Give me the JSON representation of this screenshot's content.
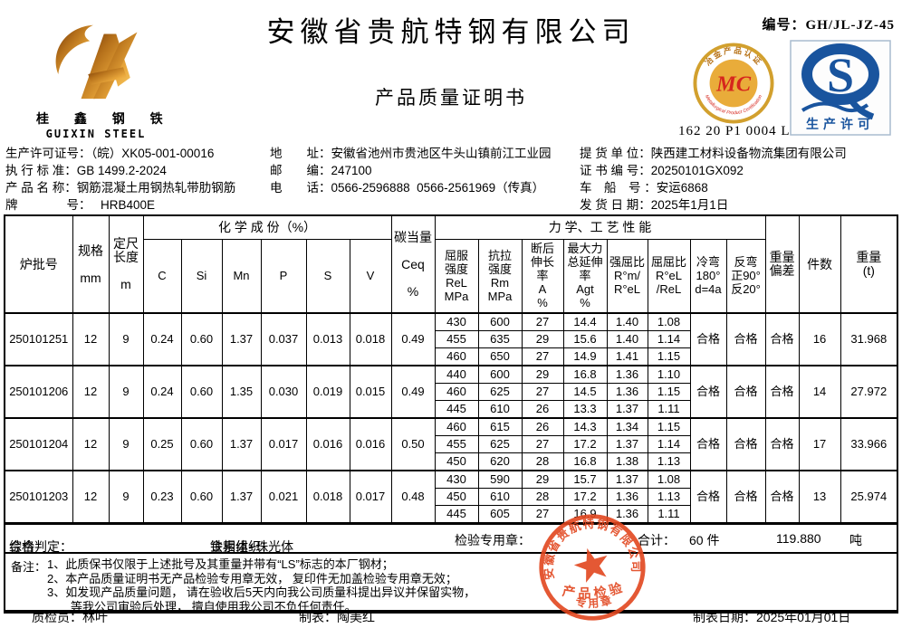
{
  "page": {
    "company": "安徽省贵航特钢有限公司",
    "doc_title": "产品质量证明书",
    "doc_no_label": "编号：",
    "doc_no": "GH/JL-JZ-45"
  },
  "logo": {
    "cn": "桂 鑫 钢 铁",
    "en": "GUIXIN STEEL"
  },
  "badges": {
    "mc": {
      "letters": "MC",
      "arc_top": "冶金产品认证",
      "arc_bottom": "Metallurgical Product Certification",
      "code": "162 20 P1 0004 L"
    },
    "qs": {
      "letter": "S",
      "label": "生产许可"
    }
  },
  "info": {
    "left": [
      {
        "label": "生产许可证号：",
        "value": "（皖）XK05-001-00016"
      },
      {
        "label": "执 行 标 准：",
        "value": "GB 1499.2-2024"
      },
      {
        "label": "产 品 名 称：",
        "value": "钢筋混凝土用钢热轧带肋钢筋"
      },
      {
        "label": "牌　　　　号：",
        "value": "　 HRB400E"
      }
    ],
    "middle": [
      {
        "label": "地　　址：",
        "value": "安徽省池州市贵池区牛头山镇前江工业园"
      },
      {
        "label": "邮　　编：",
        "value": "247100"
      },
      {
        "label": "电　　话：",
        "value": "0566-2596888  0566-2561969（传真）"
      }
    ],
    "right": [
      {
        "label": "提 货 单 位：",
        "value": "陕西建工材料设备物流集团有限公司"
      },
      {
        "label": "证 书 编 号：",
        "value": "20250101GX092"
      },
      {
        "label": "车　船　号 ：",
        "value": "安运6868"
      },
      {
        "label": "发 货 日 期：",
        "value": "2025年1月1日"
      }
    ]
  },
  "table": {
    "group_chem": "化 学 成 份（%）",
    "group_mech": "力 学、工 艺 性 能",
    "cols": {
      "batch": "炉批号",
      "spec": "规格\n\nmm",
      "length": "定尺\n长度\n\nm",
      "c": "C",
      "si": "Si",
      "mn": "Mn",
      "p": "P",
      "s": "S",
      "v": "V",
      "ceq": "碳当量\n\nCeq\n\n%",
      "rel": "屈服\n强度\nReL\nMPa",
      "rm": "抗拉\n强度\nRm\nMPa",
      "a": "断后\n伸长\n率\nA\n%",
      "agt": "最大力\n总延伸\n率\nAgt\n%",
      "rm_rel": "强屈比\nR°m/\nR°eL",
      "rel_rel": "屈屈比\nR°eL\n/ReL",
      "cold": "冷弯\n180°\nd=4a",
      "rebend": "反弯\n正90°\n反20°",
      "wdev": "重量\n偏差",
      "pieces": "件数",
      "weight": "重量\n(t)"
    },
    "batches": [
      {
        "batch_no": "250101251",
        "spec": "12",
        "length": "9",
        "chem": [
          "0.24",
          "0.60",
          "1.37",
          "0.037",
          "0.013",
          "0.018",
          "0.49"
        ],
        "mech": [
          [
            "430",
            "600",
            "27",
            "14.4",
            "1.40",
            "1.08"
          ],
          [
            "455",
            "635",
            "29",
            "15.6",
            "1.40",
            "1.14"
          ],
          [
            "460",
            "650",
            "27",
            "14.9",
            "1.41",
            "1.15"
          ]
        ],
        "cold_bend": "合格",
        "reverse_bend": "合格",
        "weight_dev": "合格",
        "pieces": "16",
        "weight": "31.968"
      },
      {
        "batch_no": "250101206",
        "spec": "12",
        "length": "9",
        "chem": [
          "0.24",
          "0.60",
          "1.35",
          "0.030",
          "0.019",
          "0.015",
          "0.49"
        ],
        "mech": [
          [
            "440",
            "600",
            "29",
            "16.8",
            "1.36",
            "1.10"
          ],
          [
            "460",
            "625",
            "27",
            "14.5",
            "1.36",
            "1.15"
          ],
          [
            "445",
            "610",
            "26",
            "13.3",
            "1.37",
            "1.11"
          ]
        ],
        "cold_bend": "合格",
        "reverse_bend": "合格",
        "weight_dev": "合格",
        "pieces": "14",
        "weight": "27.972"
      },
      {
        "batch_no": "250101204",
        "spec": "12",
        "length": "9",
        "chem": [
          "0.25",
          "0.60",
          "1.37",
          "0.017",
          "0.016",
          "0.016",
          "0.50"
        ],
        "mech": [
          [
            "460",
            "615",
            "26",
            "14.3",
            "1.34",
            "1.15"
          ],
          [
            "455",
            "625",
            "27",
            "17.2",
            "1.37",
            "1.14"
          ],
          [
            "450",
            "620",
            "28",
            "16.8",
            "1.38",
            "1.13"
          ]
        ],
        "cold_bend": "合格",
        "reverse_bend": "合格",
        "weight_dev": "合格",
        "pieces": "17",
        "weight": "33.966"
      },
      {
        "batch_no": "250101203",
        "spec": "12",
        "length": "9",
        "chem": [
          "0.23",
          "0.60",
          "1.37",
          "0.021",
          "0.018",
          "0.017",
          "0.48"
        ],
        "mech": [
          [
            "430",
            "590",
            "29",
            "15.7",
            "1.37",
            "1.08"
          ],
          [
            "450",
            "610",
            "28",
            "17.2",
            "1.36",
            "1.13"
          ],
          [
            "445",
            "605",
            "27",
            "16.9",
            "1.36",
            "1.11"
          ]
        ],
        "cold_bend": "合格",
        "reverse_bend": "合格",
        "weight_dev": "合格",
        "pieces": "13",
        "weight": "25.974"
      }
    ]
  },
  "summary": {
    "judge_label": "综合判定：",
    "judge": "合格",
    "structure_label": "金相组织：",
    "structure": "铁素体+珠光体",
    "seal_label": "检验专用章：",
    "total_label": "合计：",
    "pieces": "60 件",
    "weight": "119.880",
    "weight_unit": "吨"
  },
  "notes": {
    "label": "备注：",
    "lines": [
      "1、此质保书仅限于上述批号及其重量并带有“LS”标志的本厂钢材；",
      "2、本产品质量证明书无产品检验专用章无效， 复印件无加盖检验专用章无效；",
      "3、如发现产品质量问题， 请在验收后5天内向我公司质量科提出异议并保留实物，",
      "　　等我公司审验后处理， 擅自使用我公司不负任何责任。"
    ]
  },
  "footer": {
    "inspector_label": "质检员：",
    "inspector": "林叶",
    "tabulator_label": "制表：",
    "tabulator": "陶美红",
    "date_label": "制表日期：",
    "date": "2025年01月01日"
  },
  "stamp": {
    "company": "安徽省贵航特钢有限公司",
    "line1": "产品检验",
    "line2": "专用章"
  },
  "colors": {
    "stamp_red": "#e2461f",
    "mc_gold": "#d2a02e",
    "mc_inner": "#e9ac3a",
    "mc_red": "#d6261d",
    "mc_arc_top": "#b8741a",
    "qs_blue": "#19549e"
  }
}
